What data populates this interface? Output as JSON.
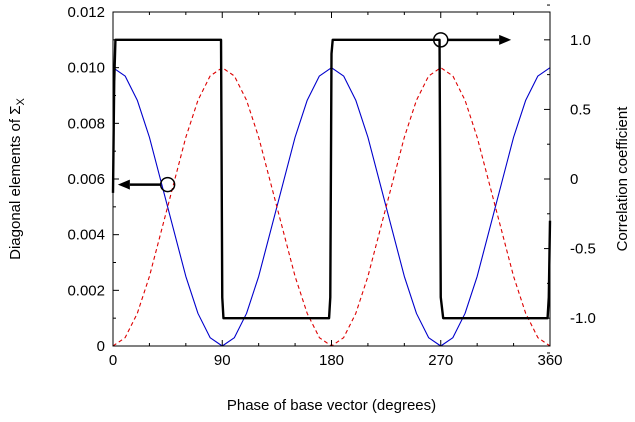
{
  "chart_data": {
    "type": "line",
    "xlabel": "Phase of base vector (degrees)",
    "ylabel_left": "Diagonal elements of ",
    "ylabel_left_symbol": "Σ",
    "ylabel_left_subscript": "X",
    "ylabel_right": "Correlation coefficient",
    "xlim": [
      0,
      360
    ],
    "ylim_left": [
      0,
      0.012
    ],
    "ylim_right": [
      -1.2,
      1.2
    ],
    "x_ticks": [
      0,
      90,
      180,
      270,
      360
    ],
    "x_tick_labels": [
      "0",
      "90",
      "180",
      "270",
      "360"
    ],
    "y_left_ticks": [
      0,
      0.002,
      0.004,
      0.006,
      0.008,
      0.01,
      0.012
    ],
    "y_left_tick_labels": [
      "0",
      "0.002",
      "0.004",
      "0.006",
      "0.008",
      "0.010",
      "0.012"
    ],
    "y_right_ticks": [
      -1.0,
      -0.5,
      0,
      0.5,
      1.0
    ],
    "y_right_tick_labels": [
      "-1.0",
      "-0.5",
      "0",
      "0.5",
      "1.0"
    ],
    "grid": false,
    "series": [
      {
        "axis": "left",
        "color": "#0000cc",
        "style": "solid",
        "function": "0.01*cos^2(x)",
        "x": [
          0,
          10,
          20,
          30,
          45,
          60,
          70,
          80,
          90,
          100,
          110,
          120,
          135,
          150,
          160,
          170,
          180,
          190,
          200,
          210,
          225,
          240,
          250,
          260,
          270,
          280,
          290,
          300,
          315,
          330,
          340,
          350,
          360
        ],
        "values": [
          0.01,
          0.0097,
          0.00883,
          0.0075,
          0.005,
          0.0025,
          0.00117,
          0.0003,
          0,
          0.0003,
          0.00117,
          0.0025,
          0.005,
          0.0075,
          0.00883,
          0.0097,
          0.01,
          0.0097,
          0.00883,
          0.0075,
          0.005,
          0.0025,
          0.00117,
          0.0003,
          0,
          0.0003,
          0.00117,
          0.0025,
          0.005,
          0.0075,
          0.00883,
          0.0097,
          0.01
        ]
      },
      {
        "axis": "left",
        "color": "#dd0000",
        "style": "dashed",
        "function": "0.01*sin^2(x)",
        "x": [
          0,
          10,
          20,
          30,
          45,
          60,
          70,
          80,
          90,
          100,
          110,
          120,
          135,
          150,
          160,
          170,
          180,
          190,
          200,
          210,
          225,
          240,
          250,
          260,
          270,
          280,
          290,
          300,
          315,
          330,
          340,
          350,
          360
        ],
        "values": [
          0,
          0.0003,
          0.00117,
          0.0025,
          0.005,
          0.0075,
          0.00883,
          0.0097,
          0.01,
          0.0097,
          0.00883,
          0.0075,
          0.005,
          0.0025,
          0.00117,
          0.0003,
          0,
          0.0003,
          0.00117,
          0.0025,
          0.005,
          0.0075,
          0.00883,
          0.0097,
          0.01,
          0.0097,
          0.00883,
          0.0075,
          0.005,
          0.0025,
          0.00117,
          0.0003,
          0
        ]
      },
      {
        "axis": "right",
        "color": "#000000",
        "style": "solid-thick",
        "x": [
          0,
          1,
          2,
          38,
          89,
          90,
          91,
          178,
          179,
          180,
          181,
          266,
          269,
          270,
          272,
          358,
          359,
          360
        ],
        "values": [
          -0.1,
          0.7,
          1.0,
          1.0,
          1.0,
          -0.85,
          -1.0,
          -1.0,
          -0.85,
          0.9,
          1.0,
          1.0,
          1.0,
          -0.85,
          -1.0,
          -1.0,
          -0.85,
          -0.3
        ]
      }
    ],
    "annotations": [
      {
        "circle_x": 45,
        "circle_y_left": 0.0058,
        "arrow_direction": "left",
        "arrow_to_x": 4
      },
      {
        "circle_x": 270,
        "circle_y_right": 1.0,
        "arrow_direction": "right",
        "arrow_to_x": 328
      }
    ]
  }
}
